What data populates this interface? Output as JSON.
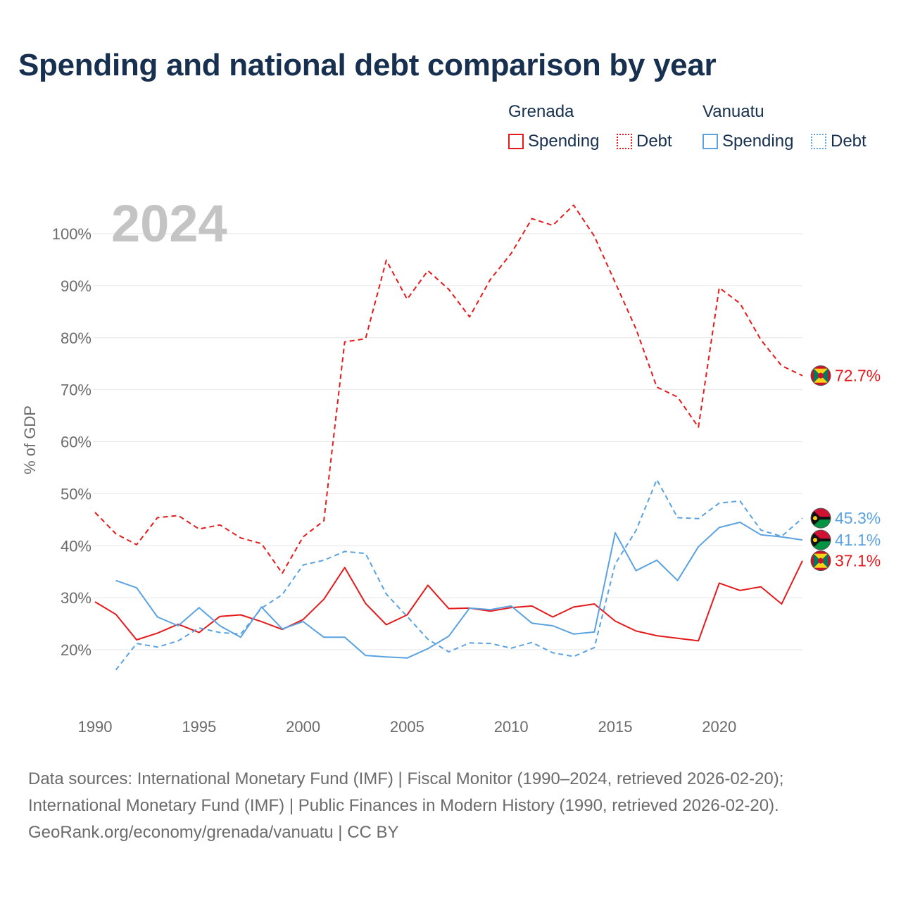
{
  "title": "Spending and national debt comparison by year",
  "legend": {
    "groups": [
      {
        "name": "Grenada",
        "color": "#e41a1c",
        "items": [
          {
            "label": "Spending",
            "style": "solid"
          },
          {
            "label": "Debt",
            "style": "dotted"
          }
        ]
      },
      {
        "name": "Vanuatu",
        "color": "#5aa2e0",
        "items": [
          {
            "label": "Spending",
            "style": "solid"
          },
          {
            "label": "Debt",
            "style": "dotted"
          }
        ]
      }
    ]
  },
  "chart_data": {
    "type": "line",
    "year_watermark": "2024",
    "ylabel": "% of GDP",
    "xlabel": "",
    "xlim": [
      1990,
      2024
    ],
    "ylim": [
      10,
      110
    ],
    "xticks": [
      1990,
      1995,
      2000,
      2005,
      2010,
      2015,
      2020
    ],
    "yticks": [
      20,
      30,
      40,
      50,
      60,
      70,
      80,
      90,
      100
    ],
    "ytick_labels": [
      "20%",
      "30%",
      "40%",
      "50%",
      "60%",
      "70%",
      "80%",
      "90%",
      "100%"
    ],
    "grid": true,
    "series": [
      {
        "name": "Grenada Spending",
        "country": "Grenada",
        "metric": "Spending",
        "color": "#e41a1c",
        "dash": "solid",
        "end_label": "37.1%",
        "flag": "grenada",
        "x": [
          1990,
          1991,
          1992,
          1993,
          1994,
          1995,
          1996,
          1997,
          1998,
          1999,
          2000,
          2001,
          2002,
          2003,
          2004,
          2005,
          2006,
          2007,
          2008,
          2009,
          2010,
          2011,
          2012,
          2013,
          2014,
          2015,
          2016,
          2017,
          2018,
          2019,
          2020,
          2021,
          2022,
          2023,
          2024
        ],
        "values": [
          29.2,
          26.8,
          21.9,
          23.2,
          24.9,
          23.3,
          26.4,
          26.7,
          25.4,
          23.9,
          25.8,
          29.7,
          35.8,
          28.9,
          24.8,
          26.7,
          32.4,
          27.9,
          28.0,
          27.4,
          28.1,
          28.4,
          26.3,
          28.2,
          28.8,
          25.5,
          23.6,
          22.7,
          22.2,
          21.7,
          32.8,
          31.4,
          32.1,
          28.8,
          37.1
        ]
      },
      {
        "name": "Grenada Debt",
        "country": "Grenada",
        "metric": "Debt",
        "color": "#e41a1c",
        "dash": "dashed",
        "end_label": "72.7%",
        "flag": "grenada",
        "x": [
          1990,
          1991,
          1992,
          1993,
          1994,
          1995,
          1996,
          1997,
          1998,
          1999,
          2000,
          2001,
          2002,
          2003,
          2004,
          2005,
          2006,
          2007,
          2008,
          2009,
          2010,
          2011,
          2012,
          2013,
          2014,
          2015,
          2016,
          2017,
          2018,
          2019,
          2020,
          2021,
          2022,
          2023,
          2024
        ],
        "values": [
          46.4,
          42.3,
          40.2,
          45.4,
          45.8,
          43.2,
          44.0,
          41.5,
          40.4,
          34.7,
          41.7,
          44.8,
          79.2,
          79.8,
          94.9,
          87.4,
          92.9,
          89.3,
          84.0,
          91.2,
          96.2,
          102.9,
          101.6,
          105.5,
          99.5,
          90.6,
          81.7,
          70.5,
          68.6,
          62.8,
          89.6,
          86.6,
          79.6,
          74.6,
          72.7
        ]
      },
      {
        "name": "Vanuatu Spending",
        "country": "Vanuatu",
        "metric": "Spending",
        "color": "#5aa2e0",
        "dash": "solid",
        "end_label": "41.1%",
        "flag": "vanuatu",
        "x": [
          1991,
          1992,
          1993,
          1994,
          1995,
          1996,
          1997,
          1998,
          1999,
          2000,
          2001,
          2002,
          2003,
          2004,
          2005,
          2006,
          2007,
          2008,
          2009,
          2010,
          2011,
          2012,
          2013,
          2014,
          2015,
          2016,
          2017,
          2018,
          2019,
          2020,
          2021,
          2022,
          2023,
          2024
        ],
        "values": [
          33.3,
          31.9,
          26.3,
          24.6,
          28.1,
          24.6,
          22.4,
          28.2,
          24.0,
          25.4,
          22.4,
          22.4,
          18.9,
          18.6,
          18.4,
          20.2,
          22.6,
          28.0,
          27.7,
          28.4,
          25.1,
          24.6,
          23.0,
          23.4,
          42.5,
          35.2,
          37.2,
          33.3,
          39.8,
          43.5,
          44.5,
          42.1,
          41.7,
          41.1
        ]
      },
      {
        "name": "Vanuatu Debt",
        "country": "Vanuatu",
        "metric": "Debt",
        "color": "#5aa2e0",
        "dash": "dashed",
        "end_label": "45.3%",
        "flag": "vanuatu",
        "x": [
          1991,
          1992,
          1993,
          1994,
          1995,
          1996,
          1997,
          1998,
          1999,
          2000,
          2001,
          2002,
          2003,
          2004,
          2005,
          2006,
          2007,
          2008,
          2009,
          2010,
          2011,
          2012,
          2013,
          2014,
          2015,
          2016,
          2017,
          2018,
          2019,
          2020,
          2021,
          2022,
          2023,
          2024
        ],
        "values": [
          16.1,
          21.2,
          20.5,
          21.7,
          24.2,
          23.3,
          23.0,
          28.0,
          30.6,
          36.3,
          37.2,
          38.9,
          38.5,
          30.7,
          26.4,
          22.0,
          19.6,
          21.3,
          21.2,
          20.3,
          21.4,
          19.4,
          18.7,
          20.4,
          36.5,
          42.9,
          52.7,
          45.4,
          45.2,
          48.2,
          48.6,
          43.0,
          41.8,
          45.3
        ]
      }
    ]
  },
  "footer": {
    "line1": "Data sources: International Monetary Fund (IMF) | Fiscal Monitor (1990–2024, retrieved 2026-02-20);",
    "line2": "International Monetary Fund (IMF) | Public Finances in Modern History (1990, retrieved 2026-02-20).",
    "line3": "GeoRank.org/economy/grenada/vanuatu | CC BY"
  }
}
